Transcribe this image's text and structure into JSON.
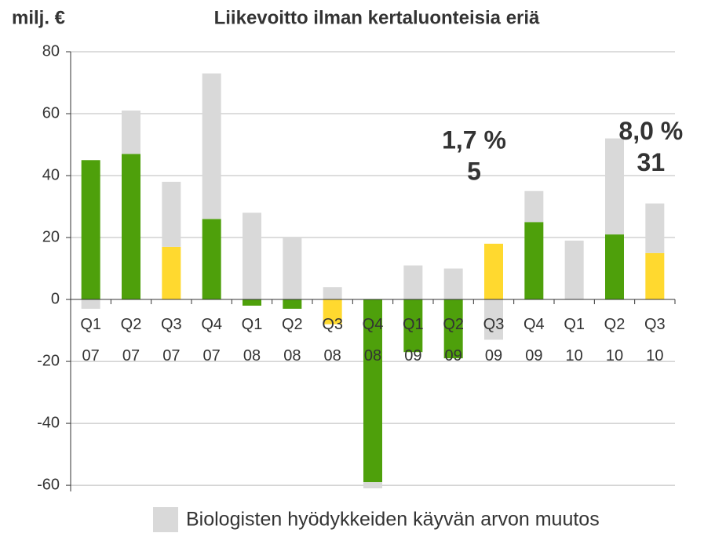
{
  "chart_data": {
    "type": "bar",
    "stacked": true,
    "title": "Liikevoitto ilman kertaluonteisia eriä",
    "y_label": "milj. €",
    "categories": [
      "Q1\n07",
      "Q2\n07",
      "Q3\n07",
      "Q4\n07",
      "Q1\n08",
      "Q2\n08",
      "Q3\n08",
      "Q4\n08",
      "Q1\n09",
      "Q2\n09",
      "Q3\n09",
      "Q4\n09",
      "Q1\n10",
      "Q2\n10",
      "Q3\n10"
    ],
    "series": [
      {
        "colors": [
          "#4ea00b",
          "#4ea00b",
          "#ffd92f",
          "#4ea00b",
          "#4ea00b",
          "#4ea00b",
          "#ffd92f",
          "#4ea00b",
          "#4ea00b",
          "#4ea00b",
          "#ffd92f",
          "#4ea00b",
          "#4ea00b",
          "#4ea00b",
          "#ffd92f"
        ],
        "values": [
          45,
          47,
          17,
          26,
          -2,
          -3,
          -8,
          -59,
          -17,
          -19,
          18,
          25,
          0,
          21,
          15
        ]
      },
      {
        "name": "Biologisten hyödykkeiden käyvän arvon muutos",
        "color": "#d9d9d9",
        "values": [
          -3,
          14,
          21,
          47,
          28,
          20,
          4,
          -2,
          11,
          10,
          -13,
          10,
          19,
          31,
          16
        ]
      }
    ],
    "annotations": [
      {
        "category": "Q3\n09",
        "text": [
          "1,7 %",
          "5"
        ]
      },
      {
        "category": "Q3\n10",
        "text": [
          "8,0 %",
          "31"
        ]
      }
    ],
    "ylim": [
      -62,
      80
    ],
    "yticks": [
      -60,
      -40,
      -20,
      0,
      20,
      40,
      60,
      80
    ],
    "grid": true
  }
}
